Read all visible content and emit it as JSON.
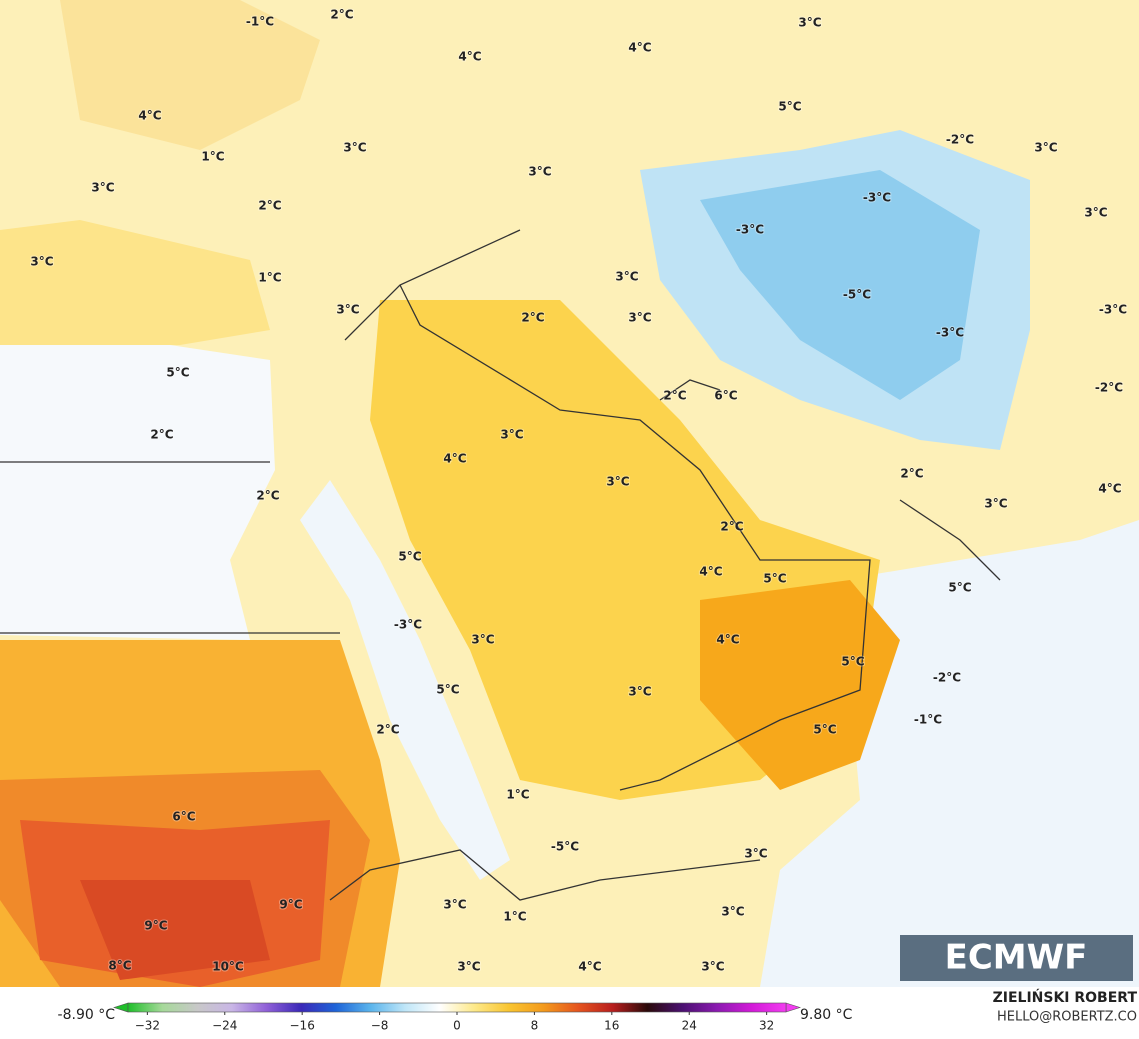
{
  "map": {
    "labels": [
      "-1°C",
      "2°C",
      "4°C",
      "4°C",
      "3°C",
      "5°C",
      "4°C",
      "3°C",
      "1°C",
      "-2°C",
      "3°C",
      "3°C",
      "3°C",
      "2°C",
      "-3°C",
      "3°C",
      "-3°C",
      "3°C",
      "1°C",
      "3°C",
      "-5°C",
      "3°C",
      "2°C",
      "3°C",
      "-3°C",
      "-3°C",
      "5°C",
      "-2°C",
      "2°C",
      "6°C",
      "2°C",
      "3°C",
      "4°C",
      "2°C",
      "3°C",
      "4°C",
      "2°C",
      "3°C",
      "2°C",
      "5°C",
      "4°C",
      "5°C",
      "5°C",
      "-3°C",
      "3°C",
      "4°C",
      "5°C",
      "-2°C",
      "5°C",
      "3°C",
      "-1°C",
      "5°C",
      "2°C",
      "1°C",
      "6°C",
      "-5°C",
      "3°C",
      "9°C",
      "3°C",
      "9°C",
      "1°C",
      "3°C",
      "8°C",
      "10°C",
      "3°C",
      "4°C",
      "3°C"
    ]
  },
  "logo": "ECMWF",
  "credit": {
    "author": "ZIELIŃSKI ROBERT",
    "contact": "HELLO@ROBERTZ.CO"
  },
  "colorbar": {
    "min_label": "-8.90 °C",
    "max_label": "9.80 °C",
    "lim": [
      -34,
      34
    ],
    "colors": [
      "#1fbf2a",
      "#a6d99a",
      "#c8c8c8",
      "#c9b6e6",
      "#9060d8",
      "#3a28b8",
      "#1e64d8",
      "#5ab4ec",
      "#bfe6f8",
      "#ffffff",
      "#fde98a",
      "#f9c531",
      "#f39a1c",
      "#e5541f",
      "#b81e1e",
      "#2a0a0a",
      "#4a1070",
      "#8a1ab0",
      "#d21ad8",
      "#f23cf0"
    ],
    "ticks": [
      {
        "value": -32,
        "label": "−32"
      },
      {
        "value": -24,
        "label": "−24"
      },
      {
        "value": -16,
        "label": "−16"
      },
      {
        "value": -8,
        "label": "−8"
      },
      0,
      8,
      16,
      24,
      32
    ]
  }
}
